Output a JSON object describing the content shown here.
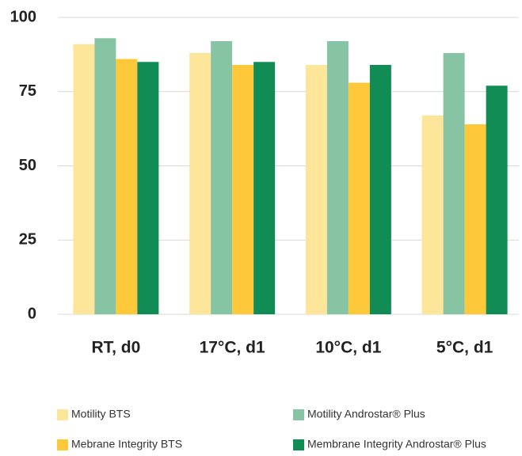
{
  "chart_data": {
    "type": "bar",
    "categories": [
      "RT, d0",
      "17°C, d1",
      "10°C, d1",
      "5°C, d1"
    ],
    "series": [
      {
        "name": "Motility BTS",
        "color": "#fde59a",
        "values": [
          91,
          88,
          84,
          67
        ]
      },
      {
        "name": "Motility Androstar® Plus",
        "color": "#86c4a4",
        "values": [
          93,
          92,
          92,
          88
        ]
      },
      {
        "name": "Mebrane Integrity BTS",
        "color": "#fdc93a",
        "values": [
          86,
          84,
          78,
          64
        ]
      },
      {
        "name": "Membrane Integrity Androstar® Plus",
        "color": "#128c55",
        "values": [
          85,
          85,
          84,
          77
        ]
      }
    ],
    "ylim": [
      0,
      100
    ],
    "yticks": [
      0,
      25,
      50,
      75,
      100
    ],
    "grid": true,
    "legend": "bottom"
  }
}
